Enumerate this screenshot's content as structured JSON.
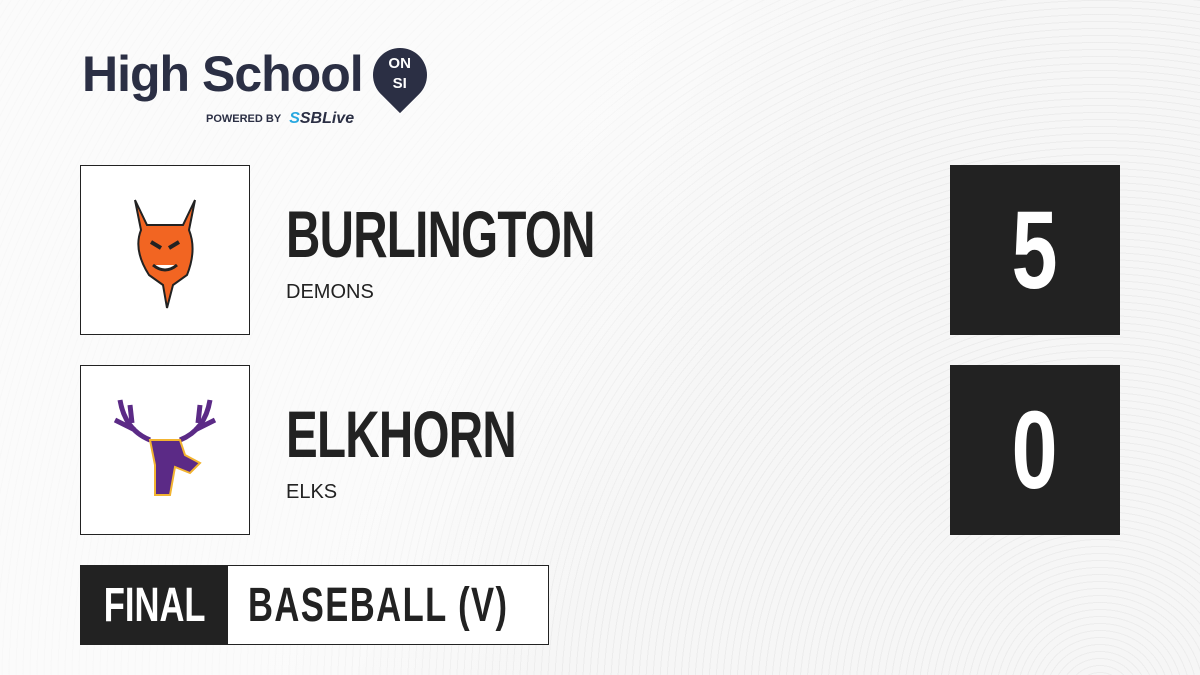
{
  "brand": {
    "title": "High School",
    "badge_top": "ON",
    "badge_bottom": "SI",
    "powered_by": "POWERED BY",
    "partner_prefix": "S",
    "partner": "SBLive"
  },
  "teams": [
    {
      "name": "BURLINGTON",
      "mascot": "DEMONS",
      "score": "5",
      "logo_color": "#f26522"
    },
    {
      "name": "ELKHORN",
      "mascot": "ELKS",
      "score": "0",
      "logo_color": "#5b2a86"
    }
  ],
  "game": {
    "status": "FINAL",
    "sport": "BASEBALL (V)"
  }
}
